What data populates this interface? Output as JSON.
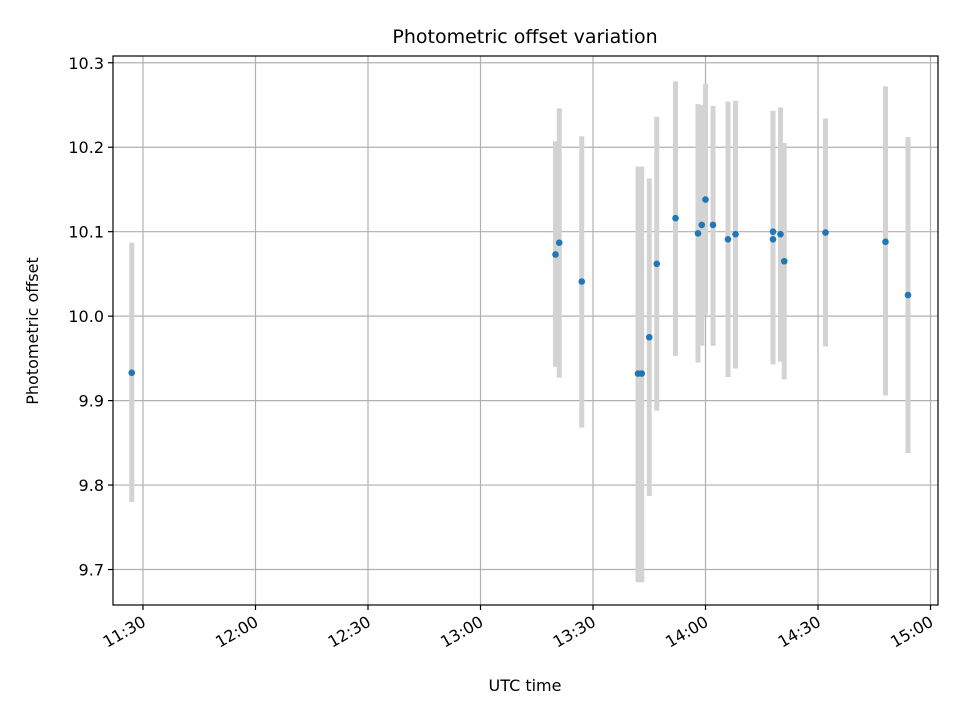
{
  "chart_data": {
    "type": "scatter",
    "title": "Photometric offset variation",
    "xlabel": "UTC time",
    "ylabel": "Photometric offset",
    "x_axis_kind": "time",
    "xlim": [
      "11:22",
      "15:02"
    ],
    "ylim": [
      9.658,
      10.308
    ],
    "x_ticks": [
      "11:30",
      "12:00",
      "12:30",
      "13:00",
      "13:30",
      "14:00",
      "14:30",
      "15:00"
    ],
    "y_ticks": [
      9.7,
      9.8,
      9.9,
      10.0,
      10.1,
      10.2,
      10.3
    ],
    "y_tick_labels": [
      "9.7",
      "9.8",
      "9.9",
      "10.0",
      "10.1",
      "10.2",
      "10.3"
    ],
    "grid": true,
    "marker_color": "#1f77b4",
    "errorbar_color": "#d3d3d3",
    "points": [
      {
        "time": "11:27",
        "value": 9.933,
        "low": 9.78,
        "high": 10.087
      },
      {
        "time": "13:20",
        "value": 10.073,
        "low": 9.94,
        "high": 10.207
      },
      {
        "time": "13:21",
        "value": 10.087,
        "low": 9.927,
        "high": 10.246
      },
      {
        "time": "13:27",
        "value": 10.041,
        "low": 9.868,
        "high": 10.213
      },
      {
        "time": "13:42",
        "value": 9.932,
        "low": 9.685,
        "high": 10.177
      },
      {
        "time": "13:43",
        "value": 9.932,
        "low": 9.685,
        "high": 10.177
      },
      {
        "time": "13:45",
        "value": 9.975,
        "low": 9.787,
        "high": 10.163
      },
      {
        "time": "13:47",
        "value": 10.062,
        "low": 9.888,
        "high": 10.236
      },
      {
        "time": "13:52",
        "value": 10.116,
        "low": 9.953,
        "high": 10.278
      },
      {
        "time": "13:58",
        "value": 10.098,
        "low": 9.945,
        "high": 10.251
      },
      {
        "time": "13:59",
        "value": 10.108,
        "low": 9.965,
        "high": 10.25
      },
      {
        "time": "14:00",
        "value": 10.138,
        "low": 10.002,
        "high": 10.275
      },
      {
        "time": "14:02",
        "value": 10.108,
        "low": 9.965,
        "high": 10.249
      },
      {
        "time": "14:06",
        "value": 10.091,
        "low": 9.928,
        "high": 10.254
      },
      {
        "time": "14:08",
        "value": 10.097,
        "low": 9.938,
        "high": 10.255
      },
      {
        "time": "14:18",
        "value": 10.1,
        "low": 9.943,
        "high": 10.243
      },
      {
        "time": "14:18",
        "value": 10.091,
        "low": 9.943,
        "high": 10.243
      },
      {
        "time": "14:20",
        "value": 10.097,
        "low": 9.946,
        "high": 10.247
      },
      {
        "time": "14:21",
        "value": 10.065,
        "low": 9.925,
        "high": 10.205
      },
      {
        "time": "14:32",
        "value": 10.099,
        "low": 9.964,
        "high": 10.234
      },
      {
        "time": "14:48",
        "value": 10.088,
        "low": 9.906,
        "high": 10.272
      },
      {
        "time": "14:54",
        "value": 10.025,
        "low": 9.838,
        "high": 10.212
      }
    ]
  }
}
